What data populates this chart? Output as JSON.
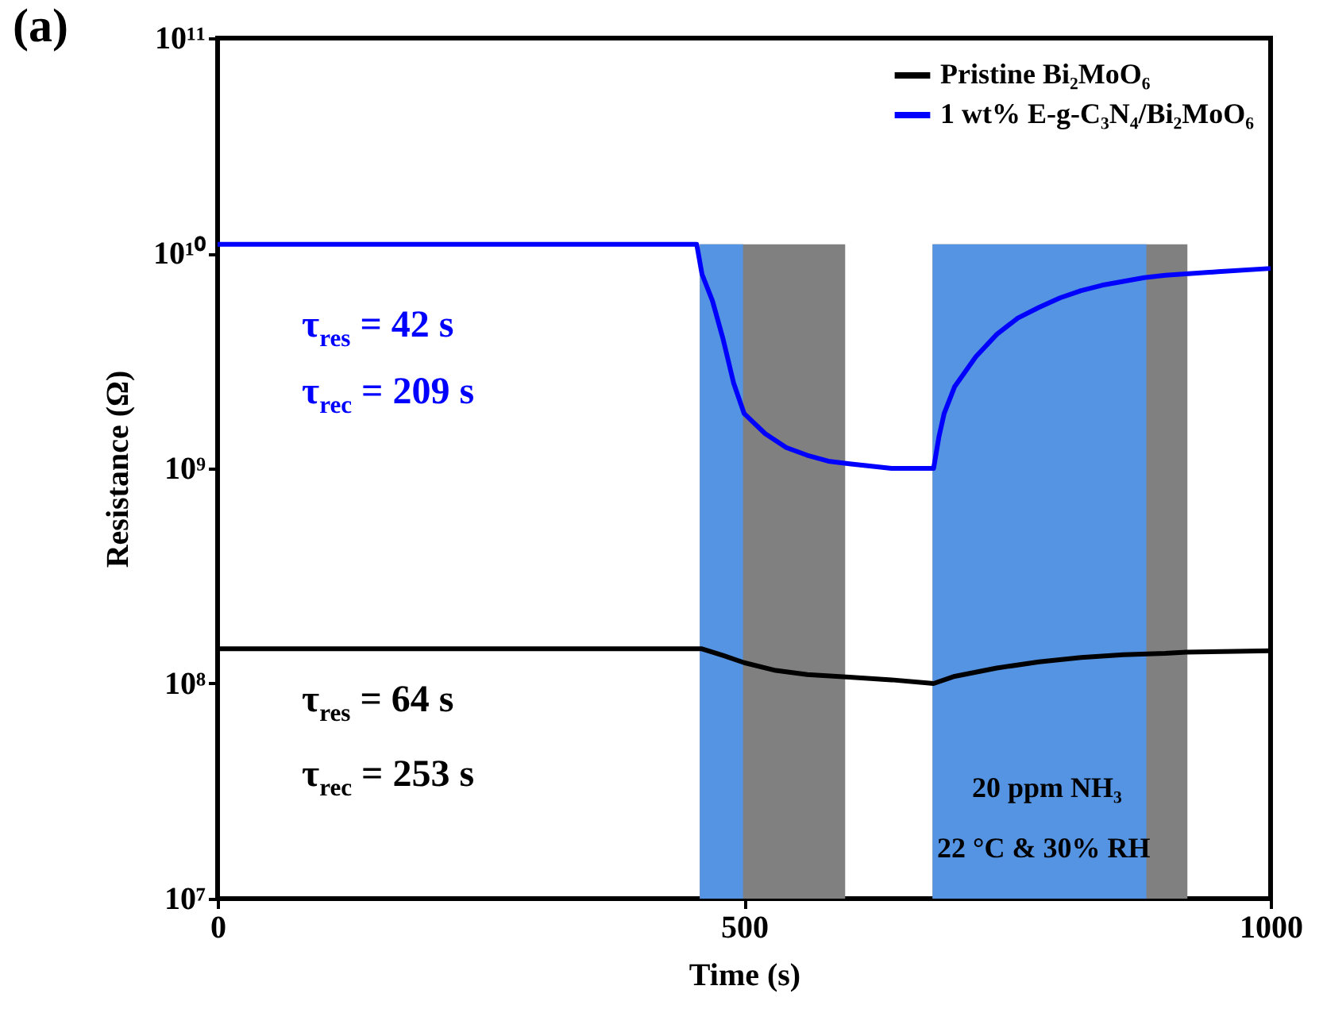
{
  "chart_data": {
    "type": "line",
    "xlabel": "Time (s)",
    "ylabel": "Resistance (Ω)",
    "xlim": [
      0,
      1000
    ],
    "xticks": [
      0,
      500,
      1000
    ],
    "ylim": [
      10000000,
      100000000000
    ],
    "log": "y",
    "yticks": [
      {
        "value": 10000000,
        "label": "10⁷"
      },
      {
        "value": 100000000,
        "label": "10⁸"
      },
      {
        "value": 1000000000,
        "label": "10⁹"
      },
      {
        "value": 10000000000,
        "label": "10¹⁰"
      },
      {
        "value": 100000000000,
        "label": "10¹¹"
      }
    ],
    "grid": false,
    "legend": "top right",
    "line_style": "solid",
    "marker": "none",
    "series": [
      {
        "name": "Pristine Bi₂MoO₆",
        "color": "#000000",
        "x": [
          0,
          100,
          200,
          300,
          400,
          450,
          460,
          480,
          500,
          530,
          560,
          600,
          640,
          680,
          700,
          740,
          780,
          820,
          860,
          900,
          920,
          1000
        ],
        "values": [
          145000000,
          145000000,
          145000000,
          145000000,
          145000000,
          145000000,
          145000000,
          135000000,
          125000000,
          115000000,
          110000000,
          107000000,
          104000000,
          100000000,
          108000000,
          118000000,
          126000000,
          132000000,
          136000000,
          138000000,
          140000000,
          142000000
        ]
      },
      {
        "name": "1 wt% E-g-C₃N₄/Bi₂MoO₆",
        "color": "#0000ff",
        "x": [
          0,
          100,
          200,
          300,
          400,
          450,
          455,
          460,
          470,
          480,
          490,
          500,
          520,
          540,
          560,
          580,
          600,
          640,
          680,
          685,
          690,
          700,
          720,
          740,
          760,
          780,
          800,
          820,
          840,
          860,
          880,
          900,
          950,
          1000
        ],
        "values": [
          11000000000,
          11000000000,
          11000000000,
          11000000000,
          11000000000,
          11000000000,
          11000000000,
          8000000000,
          6000000000,
          4000000000,
          2500000000,
          1800000000,
          1450000000,
          1250000000,
          1150000000,
          1080000000,
          1050000000,
          1000000000,
          1000000000,
          1400000000,
          1800000000,
          2400000000,
          3300000000,
          4200000000,
          5000000000,
          5600000000,
          6200000000,
          6700000000,
          7100000000,
          7400000000,
          7700000000,
          7900000000,
          8200000000,
          8500000000
        ]
      }
    ],
    "bands": [
      {
        "axis": "x",
        "from": 458,
        "to": 596,
        "color": "#808080"
      },
      {
        "axis": "x",
        "from": 679,
        "to": 921,
        "color": "#808080"
      },
      {
        "axis": "x",
        "from": 458,
        "to": 499,
        "color": "#5594e2"
      },
      {
        "axis": "x",
        "from": 679,
        "to": 882,
        "color": "#5594e2"
      }
    ],
    "annotations": [
      "(a)",
      "τ$_{res}$ = 42 s",
      "τ$_{rec}$ = 209 s",
      "τ$_{res}$ = 64 s",
      "τ$_{rec}$ = 253 s",
      "20 ppm NH₃",
      "22 °C & 30% RH"
    ]
  }
}
